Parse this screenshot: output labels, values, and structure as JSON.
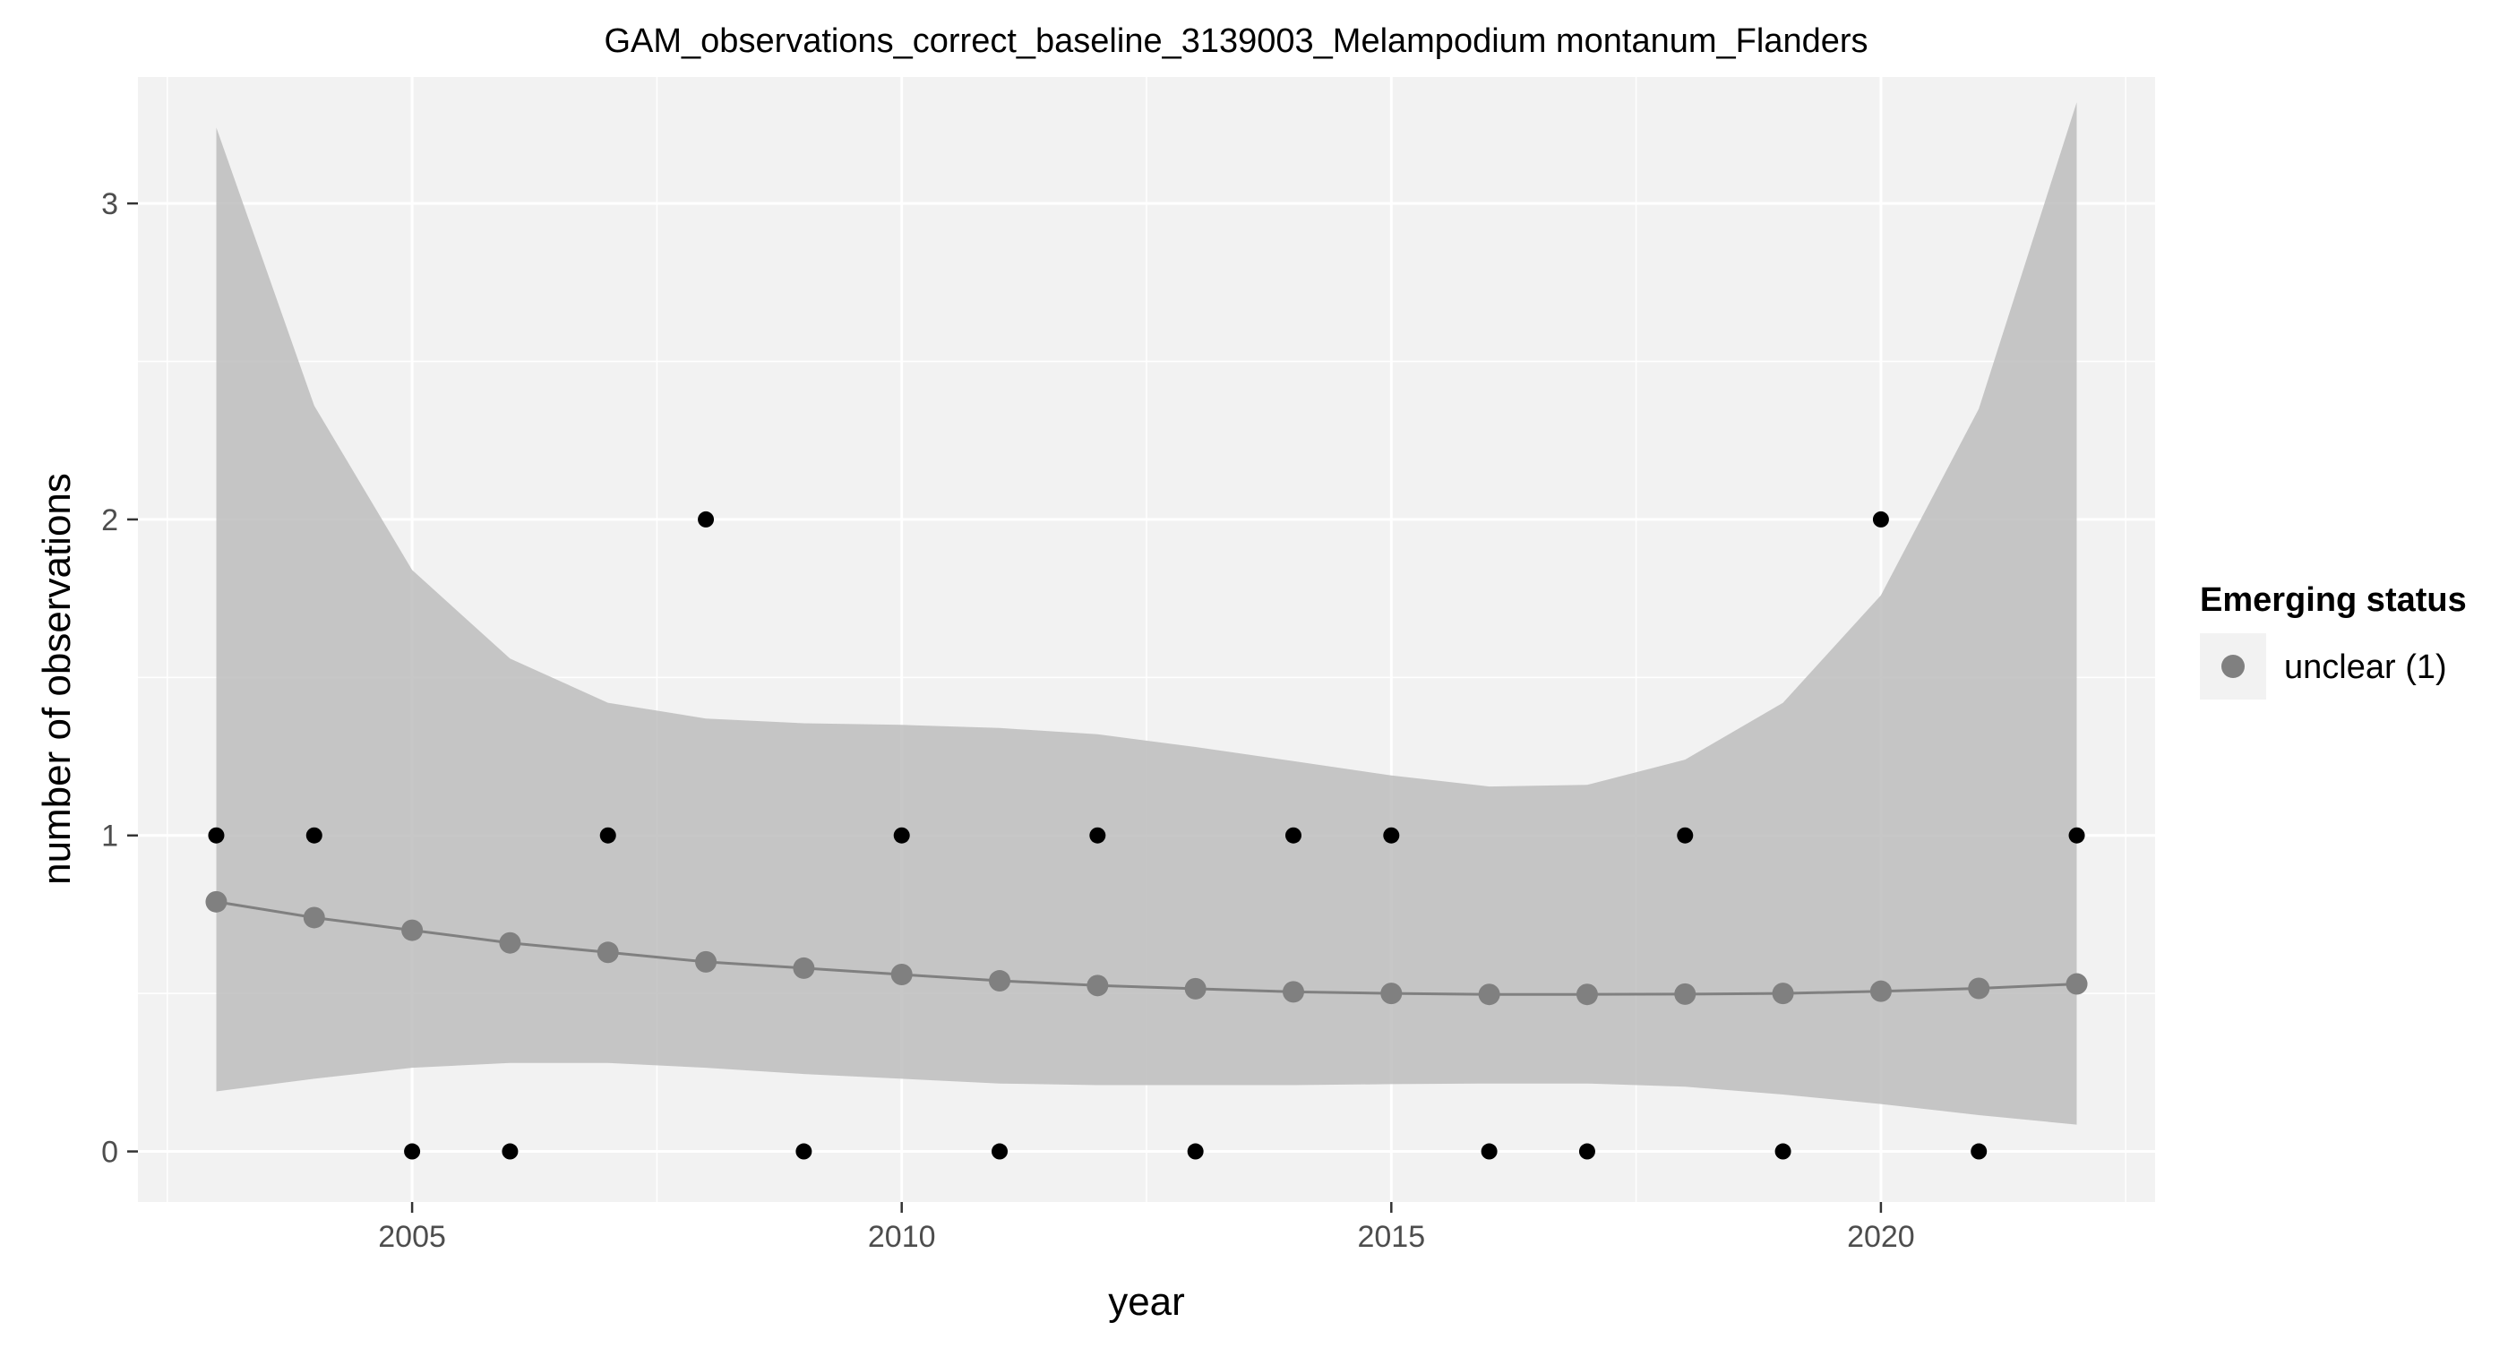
{
  "chart_data": {
    "type": "scatter",
    "title": "GAM_observations_correct_baseline_3139003_Melampodium montanum_Flanders",
    "xlabel": "year",
    "ylabel": "number of observations",
    "xlim": [
      2002.2,
      2022.8
    ],
    "ylim": [
      -0.16,
      3.4
    ],
    "grid": true,
    "x_major_ticks": [
      2005,
      2010,
      2015,
      2020
    ],
    "x_minor_ticks": [
      2002.5,
      2007.5,
      2012.5,
      2017.5,
      2022.5
    ],
    "y_major_ticks": [
      0,
      1,
      2,
      3
    ],
    "y_minor_ticks": [
      0.5,
      1.5,
      2.5
    ],
    "x_tick_labels": [
      "2005",
      "2010",
      "2015",
      "2020"
    ],
    "y_tick_labels": [
      "0",
      "1",
      "2",
      "3"
    ],
    "observations": {
      "x": [
        2003,
        2004,
        2005,
        2006,
        2007,
        2008,
        2009,
        2010,
        2011,
        2012,
        2013,
        2014,
        2015,
        2016,
        2017,
        2018,
        2019,
        2020,
        2021,
        2022
      ],
      "y": [
        1,
        1,
        0,
        0,
        1,
        2,
        0,
        1,
        0,
        1,
        0,
        1,
        1,
        0,
        0,
        1,
        0,
        2,
        0,
        1
      ],
      "color": "#000000"
    },
    "fit": {
      "x": [
        2003,
        2004,
        2005,
        2006,
        2007,
        2008,
        2009,
        2010,
        2011,
        2012,
        2013,
        2014,
        2015,
        2016,
        2017,
        2018,
        2019,
        2020,
        2021,
        2022
      ],
      "y": [
        0.79,
        0.74,
        0.7,
        0.66,
        0.63,
        0.6,
        0.58,
        0.56,
        0.54,
        0.525,
        0.515,
        0.505,
        0.5,
        0.497,
        0.497,
        0.498,
        0.5,
        0.507,
        0.516,
        0.53
      ],
      "lower": [
        0.19,
        0.23,
        0.265,
        0.28,
        0.28,
        0.265,
        0.245,
        0.23,
        0.215,
        0.21,
        0.21,
        0.21,
        0.213,
        0.215,
        0.215,
        0.205,
        0.18,
        0.15,
        0.115,
        0.085
      ],
      "upper": [
        3.24,
        2.36,
        1.84,
        1.56,
        1.42,
        1.37,
        1.355,
        1.35,
        1.34,
        1.32,
        1.28,
        1.235,
        1.19,
        1.155,
        1.16,
        1.24,
        1.42,
        1.76,
        2.35,
        3.32
      ],
      "line_color": "#808080",
      "point_color": "#808080",
      "ribbon_color": "#bdbdbd"
    },
    "legend": {
      "title": "Emerging status",
      "entries": [
        "unclear (1)"
      ],
      "placement": "right"
    },
    "panel_background": "#f2f2f2",
    "grid_color": "#ffffff"
  }
}
